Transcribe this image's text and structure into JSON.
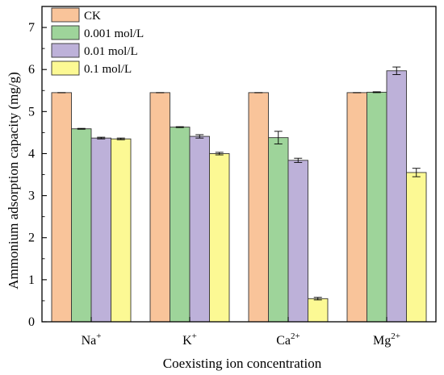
{
  "chart_data": {
    "type": "bar",
    "title": "",
    "xlabel": "Coexisting ion concentration",
    "ylabel": "Ammonium adsorption capacity (mg/g)",
    "ylim": [
      0,
      7.5
    ],
    "yticks": [
      "0",
      "1",
      "2",
      "3",
      "4",
      "5",
      "6",
      "7"
    ],
    "categories": [
      {
        "base": "Na",
        "sup": "+"
      },
      {
        "base": "K",
        "sup": "+"
      },
      {
        "base": "Ca",
        "sup": "2+"
      },
      {
        "base": "Mg",
        "sup": "2+"
      }
    ],
    "legend_position": "top-left",
    "grid": false,
    "series": [
      {
        "name": "CK",
        "color": "#F9C49A",
        "values": [
          5.45,
          5.45,
          5.45,
          5.45
        ],
        "errors": [
          0.0,
          0.0,
          0.0,
          0.0
        ]
      },
      {
        "name": "0.001 mol/L",
        "color": "#9ED49A",
        "values": [
          4.59,
          4.63,
          4.38,
          5.46
        ],
        "errors": [
          0.01,
          0.01,
          0.15,
          0.01
        ]
      },
      {
        "name": "0.01 mol/L",
        "color": "#BDB1D9",
        "values": [
          4.37,
          4.41,
          3.84,
          5.97
        ],
        "errors": [
          0.02,
          0.04,
          0.05,
          0.09
        ]
      },
      {
        "name": "0.1 mol/L",
        "color": "#FCF994",
        "values": [
          4.35,
          4.0,
          0.55,
          3.55
        ],
        "errors": [
          0.02,
          0.03,
          0.03,
          0.1
        ]
      }
    ]
  }
}
